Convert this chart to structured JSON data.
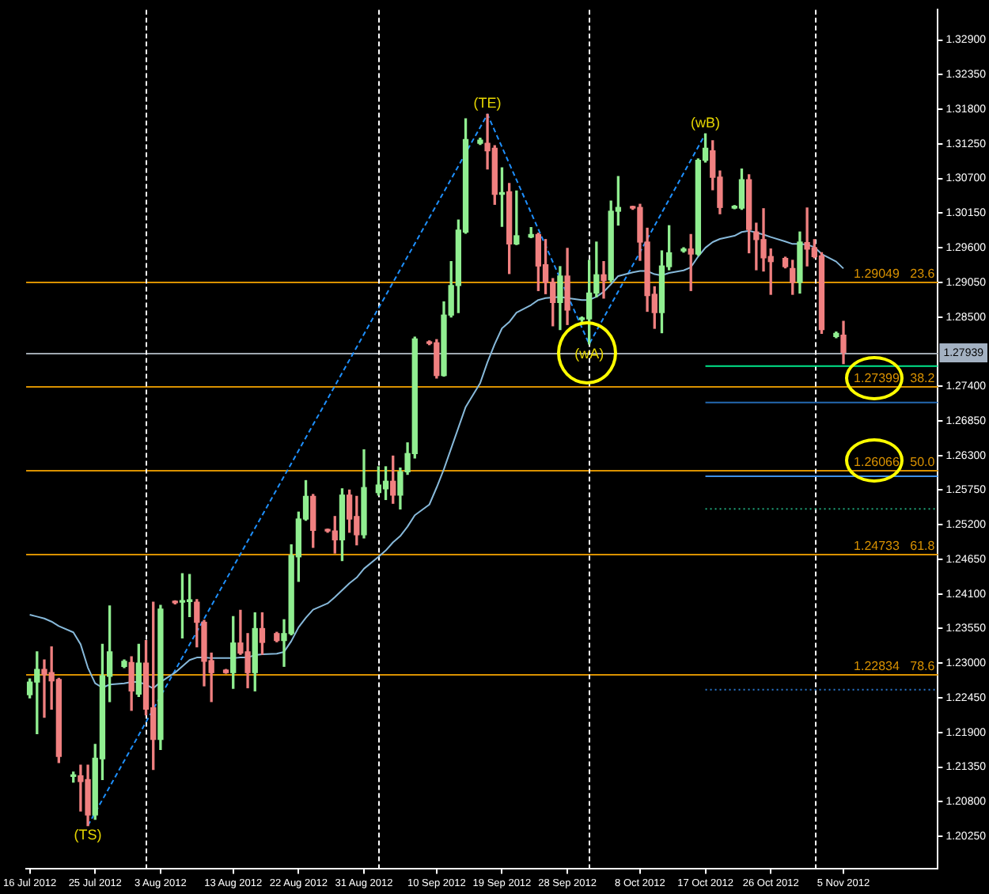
{
  "chart_data": {
    "type": "candlestick",
    "x": [
      "2012-07-16",
      "2012-07-17",
      "2012-07-18",
      "2012-07-19",
      "2012-07-20",
      "2012-07-22",
      "2012-07-23",
      "2012-07-24",
      "2012-07-25",
      "2012-07-26",
      "2012-07-27",
      "2012-07-29",
      "2012-07-30",
      "2012-07-31",
      "2012-08-01",
      "2012-08-02",
      "2012-08-03",
      "2012-08-05",
      "2012-08-06",
      "2012-08-07",
      "2012-08-08",
      "2012-08-09",
      "2012-08-10",
      "2012-08-12",
      "2012-08-13",
      "2012-08-14",
      "2012-08-15",
      "2012-08-16",
      "2012-08-17",
      "2012-08-19",
      "2012-08-20",
      "2012-08-21",
      "2012-08-22",
      "2012-08-23",
      "2012-08-24",
      "2012-08-26",
      "2012-08-27",
      "2012-08-28",
      "2012-08-29",
      "2012-08-30",
      "2012-08-31",
      "2012-09-02",
      "2012-09-03",
      "2012-09-04",
      "2012-09-05",
      "2012-09-06",
      "2012-09-07",
      "2012-09-09",
      "2012-09-10",
      "2012-09-11",
      "2012-09-12",
      "2012-09-13",
      "2012-09-14",
      "2012-09-16",
      "2012-09-17",
      "2012-09-18",
      "2012-09-19",
      "2012-09-20",
      "2012-09-21",
      "2012-09-23",
      "2012-09-24",
      "2012-09-25",
      "2012-09-26",
      "2012-09-27",
      "2012-09-28",
      "2012-09-30",
      "2012-10-01",
      "2012-10-02",
      "2012-10-03",
      "2012-10-04",
      "2012-10-05",
      "2012-10-07",
      "2012-10-08",
      "2012-10-09",
      "2012-10-10",
      "2012-10-11",
      "2012-10-12",
      "2012-10-14",
      "2012-10-15",
      "2012-10-16",
      "2012-10-17",
      "2012-10-18",
      "2012-10-19",
      "2012-10-21",
      "2012-10-22",
      "2012-10-23",
      "2012-10-24",
      "2012-10-25",
      "2012-10-26",
      "2012-10-28",
      "2012-10-29",
      "2012-10-30",
      "2012-10-31",
      "2012-11-01",
      "2012-11-02",
      "2012-11-04",
      "2012-11-05"
    ],
    "ohlc": [
      [
        1.225,
        1.2275,
        1.2245,
        1.227
      ],
      [
        1.227,
        1.2318,
        1.2188,
        1.229
      ],
      [
        1.229,
        1.2305,
        1.2214,
        1.2282
      ],
      [
        1.2285,
        1.2326,
        1.2227,
        1.2272
      ],
      [
        1.2274,
        1.2276,
        1.2142,
        1.2152
      ],
      [
        1.212,
        1.2127,
        1.2111,
        1.2121
      ],
      [
        1.2121,
        1.2138,
        1.2065,
        1.2112
      ],
      [
        1.2115,
        1.2138,
        1.2042,
        1.2059
      ],
      [
        1.2059,
        1.2171,
        1.2052,
        1.2149
      ],
      [
        1.2148,
        1.233,
        1.2115,
        1.228
      ],
      [
        1.2279,
        1.2391,
        1.2239,
        1.2318
      ],
      [
        1.2295,
        1.2305,
        1.2293,
        1.2303
      ],
      [
        1.2301,
        1.231,
        1.2225,
        1.2256
      ],
      [
        1.2251,
        1.233,
        1.2247,
        1.23
      ],
      [
        1.23,
        1.2336,
        1.2218,
        1.2227
      ],
      [
        1.2229,
        1.2397,
        1.2131,
        1.2179
      ],
      [
        1.2179,
        1.2392,
        1.2163,
        1.2386
      ],
      [
        1.2397,
        1.2399,
        1.2394,
        1.2396
      ],
      [
        1.2397,
        1.2442,
        1.234,
        1.2399
      ],
      [
        1.2398,
        1.2441,
        1.2374,
        1.24
      ],
      [
        1.2397,
        1.2401,
        1.2326,
        1.2365
      ],
      [
        1.2365,
        1.2368,
        1.2264,
        1.2303
      ],
      [
        1.2304,
        1.2316,
        1.2239,
        1.2285
      ],
      [
        1.2289,
        1.229,
        1.2284,
        1.2285
      ],
      [
        1.2285,
        1.2374,
        1.226,
        1.2332
      ],
      [
        1.2332,
        1.2384,
        1.2314,
        1.2316
      ],
      [
        1.2318,
        1.2347,
        1.2261,
        1.2285
      ],
      [
        1.2285,
        1.238,
        1.2256,
        1.2355
      ],
      [
        1.2355,
        1.238,
        1.2314,
        1.2333
      ],
      [
        1.2347,
        1.2349,
        1.2334,
        1.2336
      ],
      [
        1.2336,
        1.2369,
        1.2295,
        1.2347
      ],
      [
        1.2347,
        1.2488,
        1.2345,
        1.2471
      ],
      [
        1.2469,
        1.254,
        1.243,
        1.2529
      ],
      [
        1.2529,
        1.259,
        1.2527,
        1.2565
      ],
      [
        1.2565,
        1.2568,
        1.2484,
        1.2511
      ],
      [
        1.2511,
        1.2513,
        1.2508,
        1.251
      ],
      [
        1.251,
        1.2533,
        1.2475,
        1.2496
      ],
      [
        1.2496,
        1.2577,
        1.2463,
        1.2567
      ],
      [
        1.2567,
        1.2575,
        1.2508,
        1.2529
      ],
      [
        1.2533,
        1.2565,
        1.2488,
        1.2504
      ],
      [
        1.2504,
        1.2639,
        1.2499,
        1.2579
      ],
      [
        1.2571,
        1.2612,
        1.2567,
        1.2583
      ],
      [
        1.2577,
        1.2612,
        1.256,
        1.2589
      ],
      [
        1.2589,
        1.2629,
        1.2554,
        1.2567
      ],
      [
        1.2567,
        1.261,
        1.2545,
        1.2604
      ],
      [
        1.2604,
        1.265,
        1.26,
        1.2633
      ],
      [
        1.2633,
        1.2818,
        1.2626,
        1.2815
      ],
      [
        1.281,
        1.2812,
        1.2806,
        1.2808
      ],
      [
        1.2809,
        1.2814,
        1.2753,
        1.2757
      ],
      [
        1.2757,
        1.2874,
        1.2756,
        1.2853
      ],
      [
        1.2853,
        1.2938,
        1.285,
        1.29
      ],
      [
        1.29,
        1.3004,
        1.2857,
        1.2988
      ],
      [
        1.2985,
        1.3165,
        1.2983,
        1.3132
      ],
      [
        1.3126,
        1.3134,
        1.3124,
        1.3131
      ],
      [
        1.3126,
        1.3172,
        1.3085,
        1.3114
      ],
      [
        1.3118,
        1.3122,
        1.3029,
        1.3045
      ],
      [
        1.3045,
        1.3087,
        1.2994,
        1.3047
      ],
      [
        1.3049,
        1.3062,
        1.2919,
        1.2966
      ],
      [
        1.2966,
        1.305,
        1.2965,
        1.2979
      ],
      [
        1.2977,
        1.2992,
        1.2976,
        1.2981
      ],
      [
        1.2981,
        1.2983,
        1.2892,
        1.2931
      ],
      [
        1.2933,
        1.2973,
        1.2887,
        1.2905
      ],
      [
        1.2905,
        1.2911,
        1.2836,
        1.2873
      ],
      [
        1.2873,
        1.293,
        1.283,
        1.2915
      ],
      [
        1.2915,
        1.2959,
        1.2838,
        1.2861
      ],
      [
        1.2846,
        1.285,
        1.2843,
        1.2847
      ],
      [
        1.2847,
        1.294,
        1.2807,
        1.2888
      ],
      [
        1.2888,
        1.2969,
        1.2882,
        1.2917
      ],
      [
        1.2917,
        1.2938,
        1.288,
        1.2908
      ],
      [
        1.2909,
        1.3034,
        1.2906,
        1.3018
      ],
      [
        1.3018,
        1.3073,
        1.2996,
        1.3024
      ],
      [
        1.3025,
        1.3026,
        1.3021,
        1.3023
      ],
      [
        1.3024,
        1.3029,
        1.294,
        1.2969
      ],
      [
        1.2969,
        1.2991,
        1.2859,
        1.2884
      ],
      [
        1.2886,
        1.2898,
        1.2832,
        1.2857
      ],
      [
        1.2857,
        1.2955,
        1.2825,
        1.2931
      ],
      [
        1.293,
        1.2995,
        1.2925,
        1.2952
      ],
      [
        1.2955,
        1.296,
        1.2953,
        1.2958
      ],
      [
        1.2958,
        1.2981,
        1.2892,
        1.295
      ],
      [
        1.295,
        1.3101,
        1.2948,
        1.3099
      ],
      [
        1.3099,
        1.3141,
        1.3096,
        1.3118
      ],
      [
        1.3114,
        1.313,
        1.3052,
        1.3072
      ],
      [
        1.3072,
        1.3082,
        1.3014,
        1.3024
      ],
      [
        1.3023,
        1.3027,
        1.3022,
        1.3026
      ],
      [
        1.3023,
        1.3085,
        1.3021,
        1.3068
      ],
      [
        1.3068,
        1.3076,
        1.2952,
        1.2989
      ],
      [
        1.2985,
        1.2999,
        1.2925,
        1.2973
      ],
      [
        1.2973,
        1.3022,
        1.2923,
        1.2944
      ],
      [
        1.2946,
        1.2958,
        1.2886,
        1.2938
      ],
      [
        1.2943,
        1.2945,
        1.2928,
        1.293
      ],
      [
        1.2927,
        1.294,
        1.2886,
        1.2905
      ],
      [
        1.2905,
        1.2985,
        1.2888,
        1.2969
      ],
      [
        1.2968,
        1.3023,
        1.2931,
        1.2958
      ],
      [
        1.296,
        1.2973,
        1.2944,
        1.2946
      ],
      [
        1.2947,
        1.2952,
        1.2824,
        1.283
      ],
      [
        1.2819,
        1.2826,
        1.2817,
        1.2824
      ],
      [
        1.2821,
        1.2843,
        1.2776,
        1.27939
      ]
    ],
    "colors": [
      "#90ee90",
      "#90ee90",
      "#f08080",
      "#f08080",
      "#f08080",
      "#90ee90",
      "#f08080",
      "#f08080",
      "#90ee90",
      "#90ee90",
      "#90ee90",
      "#90ee90",
      "#f08080",
      "#90ee90",
      "#f08080",
      "#f08080",
      "#90ee90",
      "#f08080",
      "#90ee90",
      "#90ee90",
      "#f08080",
      "#f08080",
      "#f08080",
      "#f08080",
      "#90ee90",
      "#f08080",
      "#f08080",
      "#90ee90",
      "#f08080",
      "#f08080",
      "#90ee90",
      "#90ee90",
      "#90ee90",
      "#90ee90",
      "#f08080",
      "#f08080",
      "#f08080",
      "#90ee90",
      "#f08080",
      "#f08080",
      "#90ee90",
      "#90ee90",
      "#90ee90",
      "#f08080",
      "#90ee90",
      "#90ee90",
      "#90ee90",
      "#f08080",
      "#f08080",
      "#90ee90",
      "#90ee90",
      "#90ee90",
      "#90ee90",
      "#90ee90",
      "#f08080",
      "#f08080",
      "#90ee90",
      "#f08080",
      "#90ee90",
      "#90ee90",
      "#f08080",
      "#f08080",
      "#f08080",
      "#90ee90",
      "#f08080",
      "#90ee90",
      "#90ee90",
      "#90ee90",
      "#f08080",
      "#90ee90",
      "#90ee90",
      "#f08080",
      "#f08080",
      "#f08080",
      "#f08080",
      "#90ee90",
      "#90ee90",
      "#90ee90",
      "#f08080",
      "#90ee90",
      "#90ee90",
      "#f08080",
      "#f08080",
      "#90ee90",
      "#90ee90",
      "#f08080",
      "#f08080",
      "#f08080",
      "#f08080",
      "#f08080",
      "#f08080",
      "#90ee90",
      "#f08080",
      "#f08080",
      "#f08080",
      "#90ee90",
      "#f08080"
    ],
    "series": [
      {
        "type": "line",
        "color": "#87b9da",
        "values": [
          1.2377,
          1.2374,
          1.2371,
          1.2366,
          1.2359,
          1.2349,
          1.233,
          1.2293,
          1.2268,
          1.2261,
          1.2266,
          1.2268,
          1.227,
          1.227,
          1.2266,
          1.226,
          1.227,
          1.2285,
          1.2295,
          1.2305,
          1.2309,
          1.2309,
          1.2308,
          1.2308,
          1.2308,
          1.2309,
          1.2309,
          1.2313,
          1.2314,
          1.2315,
          1.2318,
          1.2335,
          1.2357,
          1.2372,
          1.2385,
          1.2395,
          1.2405,
          1.2416,
          1.2427,
          1.2436,
          1.245,
          1.2469,
          1.2479,
          1.2492,
          1.2502,
          1.2517,
          1.2535,
          1.2552,
          1.2579,
          1.2608,
          1.2641,
          1.2674,
          1.2707,
          1.2745,
          1.2778,
          1.2807,
          1.2832,
          1.2842,
          1.2857,
          1.2869,
          1.2877,
          1.288,
          1.2881,
          1.2882,
          1.288,
          1.2877,
          1.2877,
          1.2882,
          1.289,
          1.2902,
          1.2915,
          1.2921,
          1.2923,
          1.2923,
          1.2918,
          1.2916,
          1.292,
          1.2924,
          1.2929,
          1.2946,
          1.296,
          1.2969,
          1.2974,
          1.2979,
          1.2985,
          1.2987,
          1.2984,
          1.2981,
          1.2977,
          1.297,
          1.2966,
          1.2966,
          1.2965,
          1.2961,
          1.295,
          1.2938,
          1.2927
        ]
      },
      {
        "type": "line",
        "color": "#1e90ff",
        "line_style": "dashed",
        "x": [
          "2012-07-24",
          "2012-09-17",
          "2012-10-01",
          "2012-10-17"
        ],
        "values": [
          1.2042,
          1.3172,
          1.2807,
          1.3141
        ]
      },
      {
        "type": "line",
        "color": "#00e68a",
        "x": [
          "2012-10-17",
          "2012-11-18"
        ],
        "values": [
          1.2772,
          1.2772
        ]
      },
      {
        "type": "line",
        "color": "#2468b0",
        "x": [
          "2012-10-17",
          "2012-11-18"
        ],
        "values": [
          1.2714,
          1.2714
        ]
      },
      {
        "type": "line",
        "color": "#3d8fe8",
        "x": [
          "2012-10-17",
          "2012-11-18"
        ],
        "values": [
          1.2597,
          1.2597
        ]
      },
      {
        "type": "line",
        "color": "#1fa57a",
        "line_style": "dotted",
        "x": [
          "2012-10-17",
          "2012-11-18"
        ],
        "values": [
          1.2545,
          1.2545
        ]
      },
      {
        "type": "line",
        "color": "#2a78d0",
        "line_style": "dotted",
        "x": [
          "2012-10-17",
          "2012-11-18"
        ],
        "values": [
          1.2258,
          1.2258
        ]
      }
    ],
    "xlim": [
      "2012-07-15T12:00",
      "2012-11-18"
    ],
    "xticks": [
      {
        "value": "2012-07-16",
        "label": "16 Jul 2012"
      },
      {
        "value": "2012-07-25",
        "label": "25 Jul 2012"
      },
      {
        "value": "2012-08-03",
        "label": "3 Aug 2012"
      },
      {
        "value": "2012-08-13",
        "label": "13 Aug 2012"
      },
      {
        "value": "2012-08-22",
        "label": "22 Aug 2012"
      },
      {
        "value": "2012-08-31",
        "label": "31 Aug 2012"
      },
      {
        "value": "2012-09-10",
        "label": "10 Sep 2012"
      },
      {
        "value": "2012-09-19",
        "label": "19 Sep 2012"
      },
      {
        "value": "2012-09-28",
        "label": "28 Sep 2012"
      },
      {
        "value": "2012-10-08",
        "label": "8 Oct 2012"
      },
      {
        "value": "2012-10-17",
        "label": "17 Oct 2012"
      },
      {
        "value": "2012-10-26",
        "label": "26 Oct 2012"
      },
      {
        "value": "2012-11-05",
        "label": "5 Nov 2012"
      }
    ],
    "ylim": [
      1.1973,
      1.3338
    ],
    "yticks": [
      {
        "value": 1.2025,
        "label": "1.20250"
      },
      {
        "value": 1.208,
        "label": "1.20800"
      },
      {
        "value": 1.2135,
        "label": "1.21350"
      },
      {
        "value": 1.219,
        "label": "1.21900"
      },
      {
        "value": 1.2245,
        "label": "1.22450"
      },
      {
        "value": 1.23,
        "label": "1.23000"
      },
      {
        "value": 1.2355,
        "label": "1.23550"
      },
      {
        "value": 1.241,
        "label": "1.24100"
      },
      {
        "value": 1.2465,
        "label": "1.24650"
      },
      {
        "value": 1.252,
        "label": "1.25200"
      },
      {
        "value": 1.2575,
        "label": "1.25750"
      },
      {
        "value": 1.263,
        "label": "1.26300"
      },
      {
        "value": 1.2685,
        "label": "1.26850"
      },
      {
        "value": 1.274,
        "label": "1.27400"
      },
      {
        "value": 1.285,
        "label": "1.28500"
      },
      {
        "value": 1.2905,
        "label": "1.29050"
      },
      {
        "value": 1.296,
        "label": "1.29600"
      },
      {
        "value": 1.3015,
        "label": "1.30150"
      },
      {
        "value": 1.307,
        "label": "1.30700"
      },
      {
        "value": 1.3125,
        "label": "1.31250"
      },
      {
        "value": 1.318,
        "label": "1.31800"
      },
      {
        "value": 1.3235,
        "label": "1.32350"
      },
      {
        "value": 1.329,
        "label": "1.32900"
      }
    ],
    "ref_lines": [
      {
        "axis": "y",
        "value": 1.29049,
        "label": "1.29049   23.6",
        "color": "#d99100"
      },
      {
        "axis": "y",
        "value": 1.27399,
        "label": "1.27399   38.2",
        "color": "#d99100"
      },
      {
        "axis": "y",
        "value": 1.26066,
        "label": "1.26066   50.0",
        "color": "#d99100"
      },
      {
        "axis": "y",
        "value": 1.24733,
        "label": "1.24733   61.8",
        "color": "#d99100"
      },
      {
        "axis": "y",
        "value": 1.22834,
        "label": "1.22834   78.6",
        "color": "#d99100"
      },
      {
        "axis": "y",
        "value": 1.27939,
        "color": "#a0a8b0"
      },
      {
        "axis": "x",
        "value": "2012-08-01",
        "color": "#ffffff",
        "line_style": "dashed"
      },
      {
        "axis": "x",
        "value": "2012-09-02",
        "color": "#ffffff",
        "line_style": "dashed"
      },
      {
        "axis": "x",
        "value": "2012-10-01",
        "color": "#ffffff",
        "line_style": "dashed"
      },
      {
        "axis": "x",
        "value": "2012-11-01",
        "color": "#ffffff",
        "line_style": "dashed"
      }
    ],
    "annotations": [
      {
        "text": "(TS)",
        "x": "2012-07-24",
        "y": 1.2042
      },
      {
        "text": "(TE)",
        "x": "2012-09-17",
        "y": 1.3172
      },
      {
        "text": "(wA)",
        "x": "2012-10-01",
        "y": 1.2807
      },
      {
        "text": "(wB)",
        "x": "2012-10-17",
        "y": 1.3141
      },
      {
        "text": "1.27939",
        "y": 1.27939
      }
    ]
  }
}
